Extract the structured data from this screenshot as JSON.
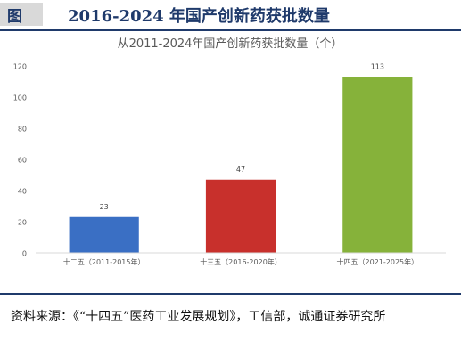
{
  "header": {
    "figure_label": "图",
    "title": "2016-2024 年国产创新药获批数量"
  },
  "source_note": "资料来源：《“十四五”医药工业发展规划》，工信部，诚通证券研究所",
  "colors": {
    "header_text": "#1f3a6b",
    "rule": "#1f3a6b"
  },
  "chart_data": {
    "type": "bar",
    "title": "从2011-2024年国产创新药获批数量（个）",
    "categories": [
      "十二五（2011-2015年）",
      "十三五（2016-2020年）",
      "十四五（2021-2025年）"
    ],
    "values": [
      23,
      47,
      113
    ],
    "value_labels": [
      "23",
      "47",
      "113"
    ],
    "bar_colors": [
      "#3a6fc4",
      "#c8302c",
      "#86b23a"
    ],
    "ylim": [
      0,
      120
    ],
    "yticks": [
      0,
      20,
      40,
      60,
      80,
      100,
      120
    ],
    "ytick_labels": [
      "0",
      "20",
      "40",
      "60",
      "80",
      "100",
      "120"
    ],
    "grid": false,
    "legend": "none",
    "xlabel": "",
    "ylabel": ""
  }
}
